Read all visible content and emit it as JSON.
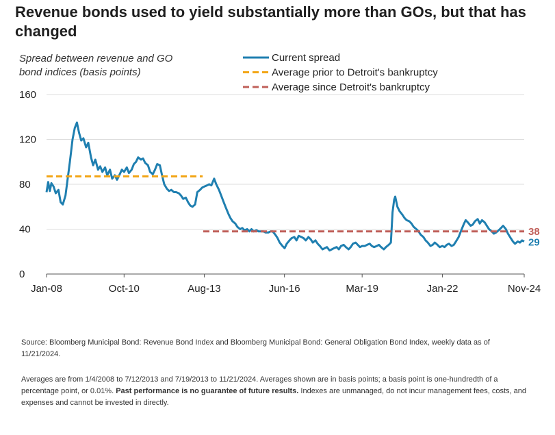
{
  "title": "Revenue bonds used to yield substantially more than GOs, but that has changed",
  "chart_data": {
    "type": "line",
    "ylabel_lines": [
      "Spread between revenue and GO",
      "bond indices (basis points)"
    ],
    "ylim": [
      0,
      160
    ],
    "yticks": [
      0,
      40,
      80,
      120,
      160
    ],
    "xlim": [
      "2008-01-04",
      "2024-11-21"
    ],
    "xticks": [
      {
        "label": "Jan-08",
        "date": "2008-01-04"
      },
      {
        "label": "Oct-10",
        "date": "2010-10-01"
      },
      {
        "label": "Aug-13",
        "date": "2013-08-01"
      },
      {
        "label": "Jun-16",
        "date": "2016-06-01"
      },
      {
        "label": "Mar-19",
        "date": "2019-03-01"
      },
      {
        "label": "Jan-22",
        "date": "2022-01-01"
      },
      {
        "label": "Nov-24",
        "date": "2024-11-21"
      }
    ],
    "grid": {
      "horizontal": true,
      "vertical": false
    },
    "legend_position": "top",
    "series": [
      {
        "name": "Current spread",
        "color": "#1f7fb0",
        "points": [
          [
            "2008-01-04",
            73
          ],
          [
            "2008-01-25",
            82
          ],
          [
            "2008-02-15",
            74
          ],
          [
            "2008-03-07",
            81
          ],
          [
            "2008-04-04",
            78
          ],
          [
            "2008-05-02",
            72
          ],
          [
            "2008-06-06",
            75
          ],
          [
            "2008-07-04",
            64
          ],
          [
            "2008-08-01",
            62
          ],
          [
            "2008-09-05",
            70
          ],
          [
            "2008-10-03",
            85
          ],
          [
            "2008-10-31",
            100
          ],
          [
            "2008-12-05",
            120
          ],
          [
            "2009-01-02",
            130
          ],
          [
            "2009-01-30",
            135
          ],
          [
            "2009-02-27",
            126
          ],
          [
            "2009-03-27",
            119
          ],
          [
            "2009-04-24",
            121
          ],
          [
            "2009-05-29",
            113
          ],
          [
            "2009-06-26",
            117
          ],
          [
            "2009-07-31",
            104
          ],
          [
            "2009-08-28",
            97
          ],
          [
            "2009-09-25",
            102
          ],
          [
            "2009-10-30",
            93
          ],
          [
            "2009-11-27",
            96
          ],
          [
            "2009-12-25",
            91
          ],
          [
            "2010-01-29",
            95
          ],
          [
            "2010-02-26",
            88
          ],
          [
            "2010-04-02",
            93
          ],
          [
            "2010-04-30",
            85
          ],
          [
            "2010-06-04",
            88
          ],
          [
            "2010-07-02",
            84
          ],
          [
            "2010-08-06",
            89
          ],
          [
            "2010-09-03",
            93
          ],
          [
            "2010-10-01",
            91
          ],
          [
            "2010-11-05",
            95
          ],
          [
            "2010-12-03",
            90
          ],
          [
            "2011-01-07",
            93
          ],
          [
            "2011-02-04",
            98
          ],
          [
            "2011-03-04",
            100
          ],
          [
            "2011-04-01",
            104
          ],
          [
            "2011-05-06",
            102
          ],
          [
            "2011-06-03",
            103
          ],
          [
            "2011-07-01",
            99
          ],
          [
            "2011-08-05",
            97
          ],
          [
            "2011-09-02",
            91
          ],
          [
            "2011-10-07",
            89
          ],
          [
            "2011-11-04",
            93
          ],
          [
            "2011-12-02",
            98
          ],
          [
            "2012-01-06",
            97
          ],
          [
            "2012-02-03",
            88
          ],
          [
            "2012-03-02",
            80
          ],
          [
            "2012-04-06",
            76
          ],
          [
            "2012-05-04",
            74
          ],
          [
            "2012-06-01",
            75
          ],
          [
            "2012-07-06",
            73
          ],
          [
            "2012-08-03",
            73
          ],
          [
            "2012-09-07",
            72
          ],
          [
            "2012-10-05",
            70
          ],
          [
            "2012-11-02",
            67
          ],
          [
            "2012-12-07",
            68
          ],
          [
            "2013-01-04",
            64
          ],
          [
            "2013-02-01",
            61
          ],
          [
            "2013-03-01",
            60
          ],
          [
            "2013-04-05",
            62
          ],
          [
            "2013-05-03",
            73
          ],
          [
            "2013-06-07",
            75
          ],
          [
            "2013-07-05",
            77
          ],
          [
            "2013-08-02",
            78
          ],
          [
            "2013-09-06",
            79
          ],
          [
            "2013-10-04",
            80
          ],
          [
            "2013-11-01",
            79
          ],
          [
            "2013-12-06",
            85
          ],
          [
            "2014-01-03",
            80
          ],
          [
            "2014-02-07",
            75
          ],
          [
            "2014-03-07",
            70
          ],
          [
            "2014-04-04",
            65
          ],
          [
            "2014-05-02",
            60
          ],
          [
            "2014-06-06",
            54
          ],
          [
            "2014-07-04",
            50
          ],
          [
            "2014-08-01",
            47
          ],
          [
            "2014-09-05",
            45
          ],
          [
            "2014-10-03",
            42
          ],
          [
            "2014-11-07",
            40
          ],
          [
            "2014-12-05",
            41
          ],
          [
            "2015-01-02",
            39
          ],
          [
            "2015-02-06",
            40
          ],
          [
            "2015-03-06",
            38
          ],
          [
            "2015-04-03",
            40
          ],
          [
            "2015-05-01",
            38
          ],
          [
            "2015-06-05",
            39
          ],
          [
            "2015-07-03",
            38
          ],
          [
            "2015-08-07",
            38
          ],
          [
            "2015-09-04",
            38
          ],
          [
            "2015-10-02",
            37
          ],
          [
            "2015-11-06",
            37
          ],
          [
            "2015-12-04",
            38
          ],
          [
            "2016-01-01",
            38
          ],
          [
            "2016-02-05",
            35
          ],
          [
            "2016-03-04",
            32
          ],
          [
            "2016-04-01",
            28
          ],
          [
            "2016-05-06",
            25
          ],
          [
            "2016-06-03",
            23
          ],
          [
            "2016-07-01",
            27
          ],
          [
            "2016-08-05",
            30
          ],
          [
            "2016-09-02",
            32
          ],
          [
            "2016-10-07",
            33
          ],
          [
            "2016-11-04",
            30
          ],
          [
            "2016-12-02",
            34
          ],
          [
            "2017-01-06",
            33
          ],
          [
            "2017-02-03",
            32
          ],
          [
            "2017-03-03",
            30
          ],
          [
            "2017-04-07",
            33
          ],
          [
            "2017-05-05",
            31
          ],
          [
            "2017-06-02",
            28
          ],
          [
            "2017-07-07",
            30
          ],
          [
            "2017-08-04",
            27
          ],
          [
            "2017-09-01",
            25
          ],
          [
            "2017-10-06",
            22
          ],
          [
            "2017-11-03",
            23
          ],
          [
            "2017-12-01",
            24
          ],
          [
            "2018-01-05",
            21
          ],
          [
            "2018-02-02",
            22
          ],
          [
            "2018-03-02",
            23
          ],
          [
            "2018-04-06",
            24
          ],
          [
            "2018-05-04",
            22
          ],
          [
            "2018-06-01",
            25
          ],
          [
            "2018-07-06",
            26
          ],
          [
            "2018-08-03",
            24
          ],
          [
            "2018-09-07",
            22
          ],
          [
            "2018-10-05",
            24
          ],
          [
            "2018-11-02",
            27
          ],
          [
            "2018-12-07",
            28
          ],
          [
            "2019-01-04",
            26
          ],
          [
            "2019-02-01",
            24
          ],
          [
            "2019-03-01",
            25
          ],
          [
            "2019-04-05",
            25
          ],
          [
            "2019-05-03",
            26
          ],
          [
            "2019-06-07",
            27
          ],
          [
            "2019-07-05",
            25
          ],
          [
            "2019-08-02",
            24
          ],
          [
            "2019-09-06",
            25
          ],
          [
            "2019-10-04",
            26
          ],
          [
            "2019-11-01",
            24
          ],
          [
            "2019-12-06",
            22
          ],
          [
            "2020-01-03",
            24
          ],
          [
            "2020-02-07",
            26
          ],
          [
            "2020-03-06",
            28
          ],
          [
            "2020-03-27",
            55
          ],
          [
            "2020-04-17",
            66
          ],
          [
            "2020-05-01",
            69
          ],
          [
            "2020-05-29",
            60
          ],
          [
            "2020-06-26",
            56
          ],
          [
            "2020-07-31",
            53
          ],
          [
            "2020-08-28",
            50
          ],
          [
            "2020-09-25",
            48
          ],
          [
            "2020-10-30",
            47
          ],
          [
            "2020-11-27",
            45
          ],
          [
            "2020-12-25",
            42
          ],
          [
            "2021-01-29",
            40
          ],
          [
            "2021-02-26",
            38
          ],
          [
            "2021-03-26",
            35
          ],
          [
            "2021-04-30",
            33
          ],
          [
            "2021-05-28",
            30
          ],
          [
            "2021-06-25",
            28
          ],
          [
            "2021-07-30",
            25
          ],
          [
            "2021-08-27",
            26
          ],
          [
            "2021-09-24",
            28
          ],
          [
            "2021-10-29",
            26
          ],
          [
            "2021-11-26",
            24
          ],
          [
            "2021-12-31",
            25
          ],
          [
            "2022-01-28",
            24
          ],
          [
            "2022-02-25",
            26
          ],
          [
            "2022-03-25",
            27
          ],
          [
            "2022-04-29",
            25
          ],
          [
            "2022-05-27",
            26
          ],
          [
            "2022-06-24",
            29
          ],
          [
            "2022-07-29",
            33
          ],
          [
            "2022-08-26",
            38
          ],
          [
            "2022-09-30",
            44
          ],
          [
            "2022-10-28",
            48
          ],
          [
            "2022-11-25",
            46
          ],
          [
            "2022-12-30",
            43
          ],
          [
            "2023-01-27",
            44
          ],
          [
            "2023-02-24",
            47
          ],
          [
            "2023-03-31",
            49
          ],
          [
            "2023-04-28",
            45
          ],
          [
            "2023-05-26",
            48
          ],
          [
            "2023-06-30",
            46
          ],
          [
            "2023-07-28",
            43
          ],
          [
            "2023-08-25",
            40
          ],
          [
            "2023-09-29",
            38
          ],
          [
            "2023-10-27",
            36
          ],
          [
            "2023-11-24",
            37
          ],
          [
            "2023-12-29",
            39
          ],
          [
            "2024-01-26",
            41
          ],
          [
            "2024-02-23",
            43
          ],
          [
            "2024-03-29",
            40
          ],
          [
            "2024-04-26",
            36
          ],
          [
            "2024-05-31",
            32
          ],
          [
            "2024-06-28",
            29
          ],
          [
            "2024-07-26",
            27
          ],
          [
            "2024-08-30",
            29
          ],
          [
            "2024-09-27",
            28
          ],
          [
            "2024-10-25",
            30
          ],
          [
            "2024-11-21",
            29
          ]
        ]
      },
      {
        "name": "Average prior to Detroit's bankruptcy",
        "color": "#f2a515",
        "dashed": true,
        "start": "2008-01-04",
        "end": "2013-07-12",
        "value": 87
      },
      {
        "name": "Average since Detroit's bankruptcy",
        "color": "#c0605a",
        "dashed": true,
        "start": "2013-07-19",
        "end": "2024-11-21",
        "value": 38
      }
    ],
    "end_labels": [
      {
        "text": "38",
        "value": 38,
        "color": "#c0605a"
      },
      {
        "text": "29",
        "value": 29,
        "color": "#1f7fb0"
      }
    ]
  },
  "footnotes": {
    "source": "Source: Bloomberg Municipal Bond: Revenue Bond Index and Bloomberg Municipal Bond: General Obligation Bond Index, weekly data as of 11/21/2024.",
    "averages_part1": "Averages are from 1/4/2008 to 7/12/2013 and 7/19/2013 to 11/21/2024. Averages shown are in basis points; a basis point is one-hundredth of a percentage point, or 0.01%. ",
    "averages_bold": "Past performance is no guarantee of future results.",
    "averages_part2": " Indexes are unmanaged, do not incur management fees, costs, and expenses and cannot be invested in directly."
  }
}
